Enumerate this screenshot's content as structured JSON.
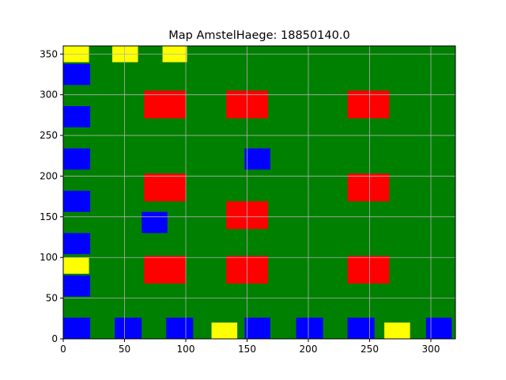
{
  "chart_data": {
    "type": "heatmap",
    "title": "Map AmstelHaege: 18850140.0",
    "xlabel": "",
    "ylabel": "",
    "xlim": [
      0,
      320
    ],
    "ylim": [
      0,
      360
    ],
    "xticks": [
      0,
      50,
      100,
      150,
      200,
      250,
      300
    ],
    "yticks": [
      0,
      50,
      100,
      150,
      200,
      250,
      300,
      350
    ],
    "grid": true,
    "background_color": "#008000",
    "colors": {
      "blue": "#0000ff",
      "red": "#ff0000",
      "yellow": "#ffff00",
      "grid": "#b0b0b0"
    },
    "rects": [
      {
        "color": "blue",
        "x0": 0,
        "x1": 22,
        "y0": 0,
        "y1": 26
      },
      {
        "color": "blue",
        "x0": 42,
        "x1": 64,
        "y0": 0,
        "y1": 26
      },
      {
        "color": "blue",
        "x0": 84,
        "x1": 106,
        "y0": 0,
        "y1": 26
      },
      {
        "color": "yellow",
        "x0": 121,
        "x1": 142,
        "y0": 0,
        "y1": 20
      },
      {
        "color": "blue",
        "x0": 148,
        "x1": 169,
        "y0": 0,
        "y1": 26
      },
      {
        "color": "blue",
        "x0": 190,
        "x1": 212,
        "y0": 0,
        "y1": 26
      },
      {
        "color": "blue",
        "x0": 232,
        "x1": 254,
        "y0": 0,
        "y1": 26
      },
      {
        "color": "yellow",
        "x0": 262,
        "x1": 283,
        "y0": 0,
        "y1": 20
      },
      {
        "color": "blue",
        "x0": 296,
        "x1": 317,
        "y0": 0,
        "y1": 26
      },
      {
        "color": "blue",
        "x0": 0,
        "x1": 22,
        "y0": 52,
        "y1": 78
      },
      {
        "color": "yellow",
        "x0": 0,
        "x1": 21,
        "y0": 80,
        "y1": 100
      },
      {
        "color": "blue",
        "x0": 0,
        "x1": 22,
        "y0": 104,
        "y1": 130
      },
      {
        "color": "blue",
        "x0": 0,
        "x1": 22,
        "y0": 156,
        "y1": 182
      },
      {
        "color": "blue",
        "x0": 0,
        "x1": 22,
        "y0": 208,
        "y1": 234
      },
      {
        "color": "blue",
        "x0": 0,
        "x1": 22,
        "y0": 260,
        "y1": 286
      },
      {
        "color": "blue",
        "x0": 0,
        "x1": 22,
        "y0": 312,
        "y1": 338
      },
      {
        "color": "yellow",
        "x0": 0,
        "x1": 21,
        "y0": 340,
        "y1": 360
      },
      {
        "color": "yellow",
        "x0": 40,
        "x1": 61,
        "y0": 340,
        "y1": 360
      },
      {
        "color": "yellow",
        "x0": 81,
        "x1": 101,
        "y0": 340,
        "y1": 360
      },
      {
        "color": "red",
        "x0": 66,
        "x1": 100,
        "y0": 68,
        "y1": 102
      },
      {
        "color": "red",
        "x0": 133,
        "x1": 167,
        "y0": 68,
        "y1": 102
      },
      {
        "color": "red",
        "x0": 232,
        "x1": 266,
        "y0": 68,
        "y1": 102
      },
      {
        "color": "blue",
        "x0": 64,
        "x1": 85,
        "y0": 130,
        "y1": 156
      },
      {
        "color": "red",
        "x0": 133,
        "x1": 167,
        "y0": 135,
        "y1": 169
      },
      {
        "color": "red",
        "x0": 66,
        "x1": 100,
        "y0": 169,
        "y1": 203
      },
      {
        "color": "red",
        "x0": 232,
        "x1": 266,
        "y0": 169,
        "y1": 203
      },
      {
        "color": "blue",
        "x0": 148,
        "x1": 169,
        "y0": 208,
        "y1": 234
      },
      {
        "color": "red",
        "x0": 66,
        "x1": 100,
        "y0": 271,
        "y1": 305
      },
      {
        "color": "red",
        "x0": 133,
        "x1": 167,
        "y0": 271,
        "y1": 305
      },
      {
        "color": "red",
        "x0": 232,
        "x1": 266,
        "y0": 271,
        "y1": 305
      }
    ]
  }
}
